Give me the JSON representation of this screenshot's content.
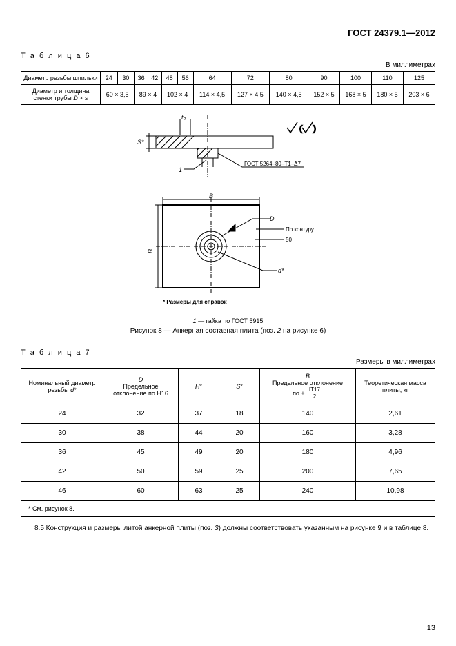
{
  "header": {
    "doc_id": "ГОСТ 24379.1—2012"
  },
  "page_number": "13",
  "table6": {
    "label": "Т а б л и ц а  6",
    "units": "В миллиметрах",
    "row1_label": "Диаметр резьбы шпильки",
    "row1_vals": [
      "24",
      "30",
      "36",
      "42",
      "48",
      "56",
      "64",
      "72",
      "80",
      "90",
      "100",
      "110",
      "125"
    ],
    "row2_label_html": "Диаметр и толщина стенки трубы <span class='it'>D × s</span>",
    "row2_vals": [
      "60 × 3,5",
      "89 × 4",
      "102 × 4",
      "114 × 4,5",
      "127 × 4,5",
      "140 × 4,5",
      "152 × 5",
      "168 × 5",
      "180 × 5",
      "203 × 6"
    ],
    "row2_spans": [
      2,
      2,
      2,
      1,
      1,
      1,
      1,
      1,
      1,
      1
    ]
  },
  "figure": {
    "svg_text_gost": "ГОСТ 5264–80–Т1–Δ7",
    "svg_text_contour": "По контуру",
    "svg_text_dims": "* Размеры для справок",
    "note": "1 — гайка по ГОСТ 5915",
    "caption": "Рисунок 8 — Анкерная составная плита (поз. 2 на рисунке 6)"
  },
  "table7": {
    "label": "Т а б л и ц а  7",
    "units": "Размеры в миллиметрах",
    "headers": {
      "h1": "Номинальный диаметр резьбы d*",
      "h2_top": "D",
      "h2_bot": "Предельное отклонение по H16",
      "h3": "H*",
      "h4": "S*",
      "h5_top": "B",
      "h5_mid": "Предельное отклонение",
      "h5_frac_top": "IT17",
      "h5_frac_bot": "2",
      "h5_prefix": "по ±",
      "h6": "Теоретическая масса плиты, кг"
    },
    "rows": [
      [
        "24",
        "32",
        "37",
        "18",
        "140",
        "2,61"
      ],
      [
        "30",
        "38",
        "44",
        "20",
        "160",
        "3,28"
      ],
      [
        "36",
        "45",
        "49",
        "20",
        "180",
        "4,96"
      ],
      [
        "42",
        "50",
        "59",
        "25",
        "200",
        "7,65"
      ],
      [
        "46",
        "60",
        "63",
        "25",
        "240",
        "10,98"
      ]
    ],
    "footnote": "* См. рисунок 8."
  },
  "paragraph": "8.5 Конструкция и размеры литой анкерной плиты (поз. 3) должны соответствовать указанным на рисунке 9 и в таблице 8."
}
